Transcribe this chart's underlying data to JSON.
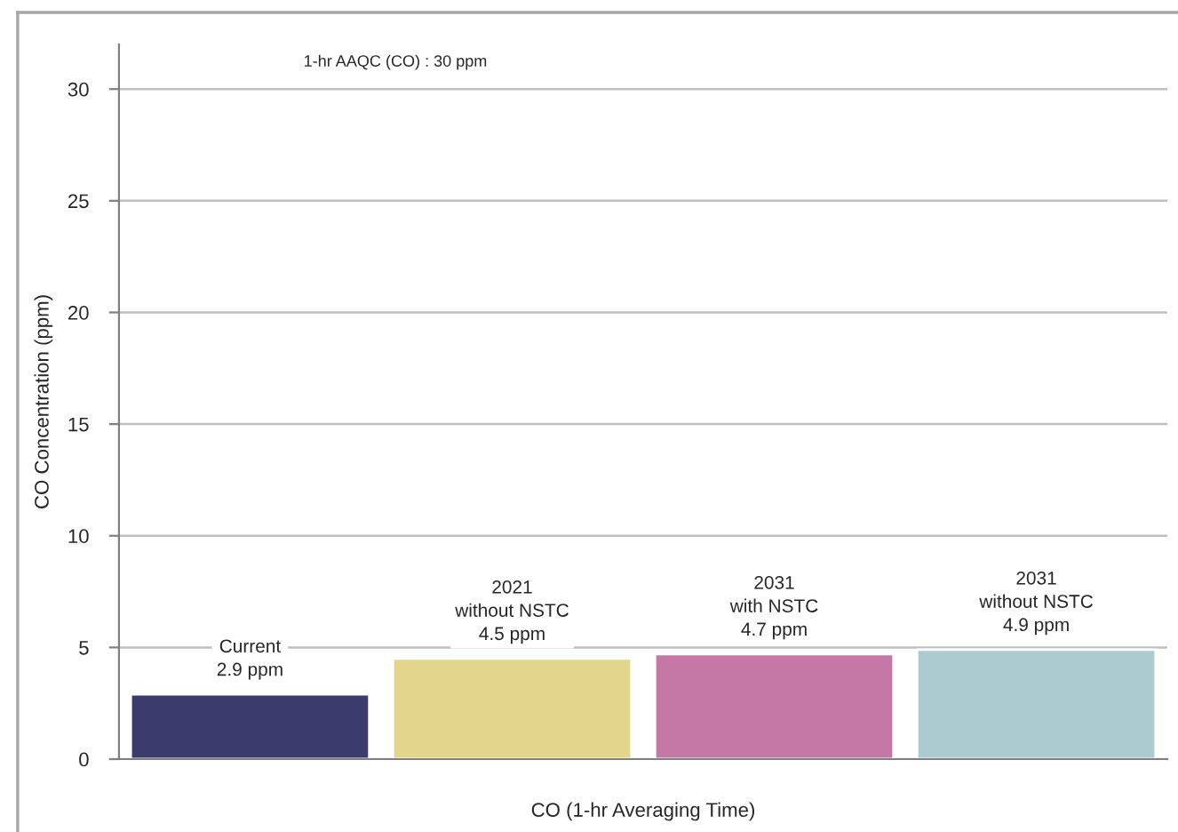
{
  "chart_data": {
    "type": "bar",
    "xlabel": "CO (1-hr Averaging Time)",
    "ylabel": "CO Concentration (ppm)",
    "categories": [
      null,
      null,
      null,
      null
    ],
    "values": [
      2.9,
      4.5,
      4.7,
      4.9
    ],
    "colors": [
      "#3b3b6e",
      "#e2d58c",
      "#c578a6",
      "#abcbcf"
    ],
    "value_labels": [
      "Current\n2.9 ppm",
      "2021\nwithout NSTC\n4.5 ppm",
      "2031\nwith NSTC\n4.7 ppm",
      "2031\nwithout NSTC\n4.9 ppm"
    ],
    "ylim": [
      0,
      32
    ],
    "yticks": [
      0,
      5,
      10,
      15,
      20,
      25,
      30
    ],
    "grid": "y",
    "annotations": [
      "1-hr AAQC (CO) : 30 ppm"
    ]
  }
}
